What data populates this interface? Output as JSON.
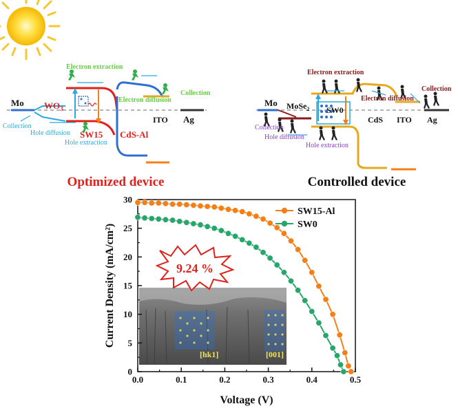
{
  "left_diagram": {
    "title": "Optimized device",
    "labels": {
      "mo": "Mo",
      "wo3": "WO",
      "wo3_sub": "3",
      "sw15": "SW15",
      "cds": "CdS-Al",
      "ito": "ITO",
      "ag": "Ag",
      "electron_extraction": "Electron extraction",
      "electron_diffusion": "Electron diffusion",
      "collection_right": "Collection",
      "collection_left": "Collection",
      "hole_diffusion": "Hole diffusion",
      "hole_extraction": "Hole extraction"
    }
  },
  "right_diagram": {
    "title": "Controlled device",
    "labels": {
      "mo": "Mo",
      "mose2": "MoSe",
      "mose2_sub": "2",
      "sw0": "SW0",
      "cds": "CdS",
      "ito": "ITO",
      "ag": "Ag",
      "electron_extraction": "Electron extraction",
      "electron_diffusion": "Electron diffusion",
      "collection_right": "Collection",
      "collection_left": "Collection",
      "hole_diffusion": "Hole diffusion",
      "hole_extraction": "Hole extraction"
    }
  },
  "efficiency_badge": "9.24 %",
  "inset": {
    "label_left": "[hk1]",
    "label_right": "[001]"
  },
  "colors": {
    "orange": "#f57f17",
    "green": "#26a66b",
    "red": "#e0201b",
    "blue": "#2c6fd1",
    "gold": "#e6a81c",
    "lightblue": "#2aa9e0",
    "lime": "#63d13e",
    "purple": "#8a3bd1",
    "maroon": "#8b1a1a"
  },
  "chart_data": {
    "type": "line",
    "xlabel": "Voltage (V)",
    "ylabel": "Current Density (mA/cm²)",
    "xlim": [
      0.0,
      0.5
    ],
    "ylim": [
      0,
      30
    ],
    "xticks": [
      "0.0",
      "0.1",
      "0.2",
      "0.3",
      "0.4",
      "0.5"
    ],
    "yticks": [
      "0",
      "5",
      "10",
      "15",
      "20",
      "25",
      "30"
    ],
    "legend_position": "top-right",
    "grid": false,
    "series": [
      {
        "name": "SW15-Al",
        "color": "#f57f17",
        "x": [
          0.0,
          0.016,
          0.032,
          0.048,
          0.064,
          0.08,
          0.096,
          0.112,
          0.128,
          0.144,
          0.16,
          0.176,
          0.192,
          0.208,
          0.224,
          0.24,
          0.256,
          0.272,
          0.288,
          0.304,
          0.32,
          0.336,
          0.352,
          0.368,
          0.384,
          0.4,
          0.416,
          0.432,
          0.448,
          0.464,
          0.476,
          0.484,
          0.49
        ],
        "y": [
          29.5,
          29.5,
          29.4,
          29.4,
          29.3,
          29.2,
          29.2,
          29.1,
          29.0,
          28.9,
          28.8,
          28.7,
          28.5,
          28.3,
          28.1,
          27.9,
          27.5,
          27.1,
          26.6,
          25.9,
          25.1,
          24.1,
          22.8,
          21.3,
          19.4,
          17.3,
          14.9,
          12.6,
          10.0,
          6.4,
          3.3,
          1.0,
          0.0
        ]
      },
      {
        "name": "SW0",
        "color": "#26a66b",
        "x": [
          0.0,
          0.016,
          0.032,
          0.048,
          0.064,
          0.08,
          0.096,
          0.112,
          0.128,
          0.144,
          0.16,
          0.176,
          0.192,
          0.208,
          0.224,
          0.24,
          0.256,
          0.272,
          0.288,
          0.304,
          0.32,
          0.336,
          0.352,
          0.368,
          0.384,
          0.4,
          0.416,
          0.432,
          0.448,
          0.458,
          0.466,
          0.473
        ],
        "y": [
          26.9,
          26.8,
          26.7,
          26.6,
          26.5,
          26.4,
          26.2,
          26.0,
          25.8,
          25.6,
          25.3,
          25.0,
          24.6,
          24.1,
          23.6,
          23.0,
          22.4,
          21.7,
          20.8,
          19.8,
          18.6,
          17.3,
          15.8,
          14.2,
          12.4,
          10.5,
          8.5,
          6.3,
          4.1,
          2.8,
          1.2,
          0.0
        ]
      }
    ]
  }
}
